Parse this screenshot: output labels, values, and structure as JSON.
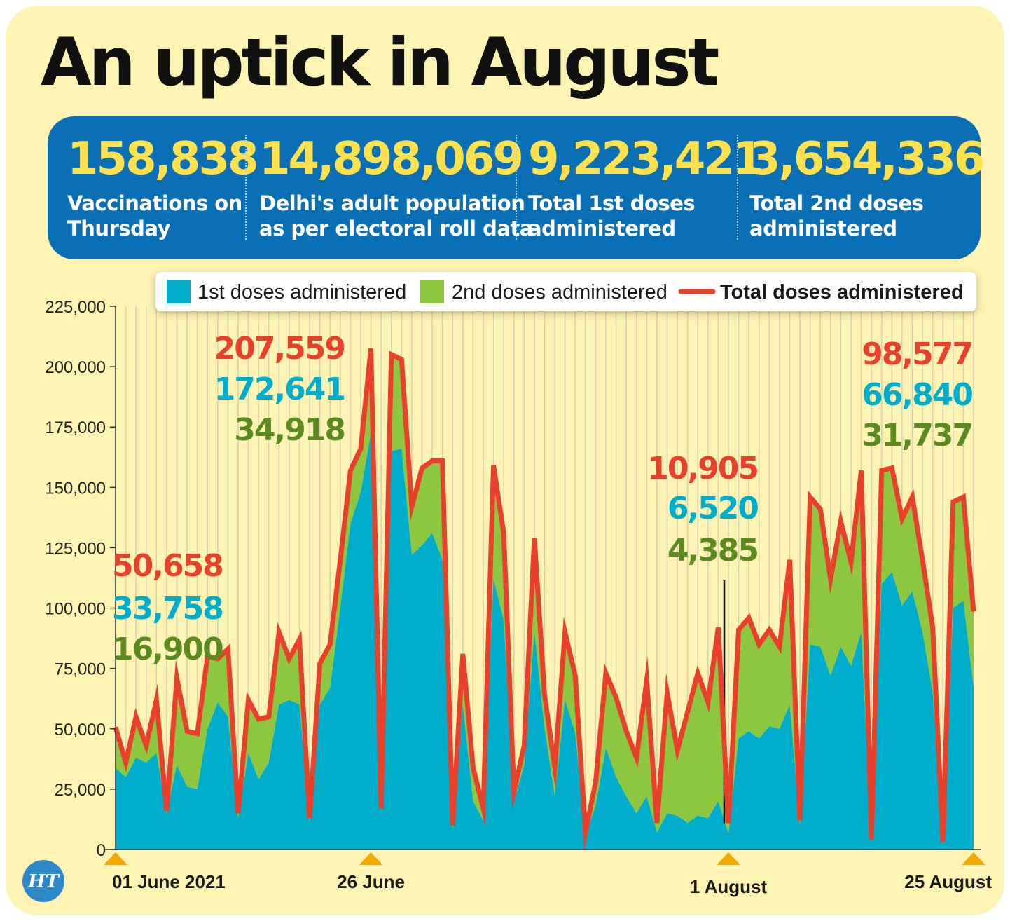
{
  "title": "An uptick in August",
  "stats": [
    {
      "value": "158,838",
      "label": "Vaccinations on\nThursday"
    },
    {
      "value": "14,898,069",
      "label": "Delhi's adult population\nas per electoral roll data"
    },
    {
      "value": "9,223,421",
      "label": "Total 1st doses\nadministered"
    },
    {
      "value": "3,654,336",
      "label": "Total 2nd doses\nadministered"
    }
  ],
  "logo": "HT",
  "colors": {
    "background": "#fdf3b2",
    "panel": "#0b6fb6",
    "first_dose": "#00aecb",
    "second_dose": "#8dc63f",
    "total": "#e8402a",
    "highlight": "#ffe14d",
    "marker": "#f5a800"
  },
  "chart_data": {
    "type": "area",
    "x_labels": [
      "01 June 2021",
      "26 June",
      "1 August",
      "25 August"
    ],
    "legend": [
      "1st doses administered",
      "2nd doses administered",
      "Total doses administered"
    ],
    "legend_position": "top-center",
    "ylim": [
      0,
      225000
    ],
    "y_ticks": [
      "0",
      "25,000",
      "50,000",
      "75,000",
      "100,000",
      "125,000",
      "150,000",
      "175,000",
      "200,000",
      "225,000"
    ],
    "grid": true,
    "series": [
      {
        "name": "1st doses administered",
        "stack": "area",
        "values": [
          33758,
          30000,
          38000,
          36000,
          40000,
          15000,
          35000,
          26000,
          25000,
          50000,
          61000,
          55000,
          13000,
          40000,
          29000,
          36000,
          60000,
          62000,
          60000,
          11000,
          60000,
          67000,
          100000,
          135000,
          148000,
          172641,
          15000,
          165000,
          166000,
          122000,
          126000,
          131000,
          120000,
          8000,
          60000,
          20000,
          12000,
          112000,
          95000,
          20000,
          35000,
          90000,
          50000,
          22000,
          62000,
          48000,
          6000,
          18000,
          42000,
          30000,
          22000,
          15000,
          22000,
          7000,
          15000,
          14000,
          11000,
          14000,
          13000,
          20000,
          6520,
          46000,
          49000,
          46000,
          51000,
          50000,
          60000,
          10000,
          85000,
          84000,
          72000,
          84000,
          76000,
          90000,
          3000,
          110000,
          115000,
          101000,
          107000,
          90000,
          65000,
          2000,
          100000,
          103000,
          66840
        ]
      },
      {
        "name": "2nd doses administered",
        "stack": "area",
        "values": [
          16900,
          6000,
          17000,
          7000,
          22000,
          1000,
          36000,
          23000,
          23000,
          30000,
          18000,
          28000,
          2000,
          22000,
          25000,
          19000,
          30000,
          17000,
          27000,
          2000,
          17000,
          18000,
          20000,
          22000,
          18000,
          34918,
          2000,
          40000,
          37000,
          20000,
          32000,
          30000,
          41000,
          2000,
          21000,
          14000,
          5000,
          47000,
          36000,
          4000,
          8000,
          39000,
          14000,
          12000,
          28000,
          24000,
          1000,
          10000,
          31000,
          33000,
          27000,
          23000,
          48000,
          4000,
          50000,
          27000,
          46000,
          59000,
          48000,
          72000,
          4385,
          45000,
          47000,
          39000,
          40000,
          34000,
          60000,
          2000,
          61000,
          57000,
          40000,
          52000,
          43000,
          67000,
          1000,
          47000,
          43000,
          36000,
          39000,
          30000,
          27000,
          1000,
          44000,
          43000,
          31737
        ]
      },
      {
        "name": "Total doses administered",
        "stack": "line",
        "values": [
          50658,
          36000,
          55000,
          43000,
          62000,
          16000,
          71000,
          49000,
          48000,
          80000,
          79000,
          83000,
          15000,
          62000,
          54000,
          55000,
          90000,
          79000,
          87000,
          13000,
          77000,
          85000,
          120000,
          157000,
          166000,
          207559,
          17000,
          205000,
          203000,
          142000,
          158000,
          161000,
          161000,
          10000,
          81000,
          34000,
          17000,
          159000,
          131000,
          24000,
          43000,
          129000,
          64000,
          34000,
          90000,
          72000,
          7000,
          28000,
          73000,
          63000,
          49000,
          38000,
          70000,
          11000,
          65000,
          41000,
          57000,
          73000,
          61000,
          92000,
          10905,
          91000,
          96000,
          85000,
          91000,
          84000,
          120000,
          12000,
          146000,
          141000,
          112000,
          136000,
          119000,
          157000,
          4000,
          157000,
          158000,
          137000,
          146000,
          120000,
          92000,
          3000,
          144000,
          146000,
          98577
        ]
      }
    ],
    "annotations": [
      {
        "index": 0,
        "total": "50,658",
        "first": "33,758",
        "second": "16,900"
      },
      {
        "index": 25,
        "total": "207,559",
        "first": "172,641",
        "second": "34,918"
      },
      {
        "index": 60,
        "total": "10,905",
        "first": "6,520",
        "second": "4,385"
      },
      {
        "index": 84,
        "total": "98,577",
        "first": "66,840",
        "second": "31,737"
      }
    ],
    "label_indices": [
      0,
      25,
      60,
      84
    ]
  }
}
